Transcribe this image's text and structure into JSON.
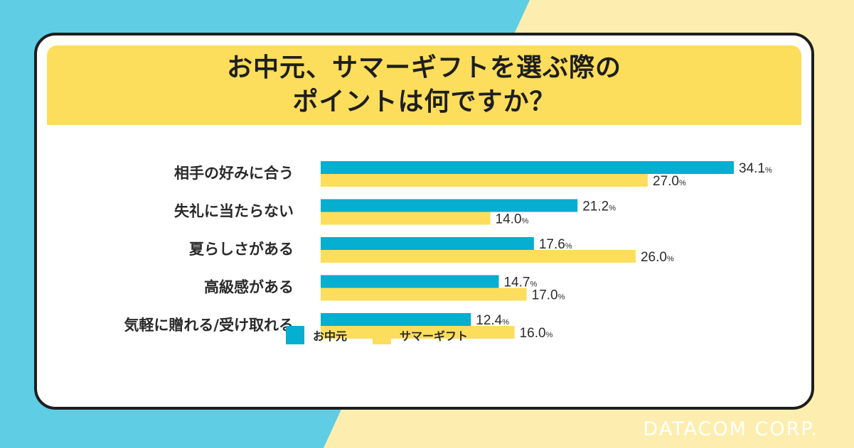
{
  "brand": {
    "text": "DATACOM CORP."
  },
  "colors": {
    "series_0": "#06aed0",
    "series_1": "#fddd5c",
    "background_blue": "#5fcde4",
    "background_yellow": "#fdeeb0"
  },
  "chart_data": {
    "type": "bar",
    "orientation": "horizontal",
    "title_lines": [
      "お中元、サマーギフトを選ぶ際の",
      "ポイントは何ですか？"
    ],
    "categories": [
      "相手の好みに合う",
      "失礼に当たらない",
      "夏らしさがある",
      "高級感がある",
      "気軽に贈れる/受け取れる"
    ],
    "value_labels": [
      [
        "34.1",
        "21.2",
        "17.6",
        "14.7",
        "12.4"
      ],
      [
        "27.0",
        "14.0",
        "26.0",
        "17.0",
        "16.0"
      ]
    ],
    "series": [
      {
        "name": "お中元",
        "values": [
          34.1,
          21.2,
          17.6,
          14.7,
          12.4
        ]
      },
      {
        "name": "サマーギフト",
        "values": [
          27.0,
          14.0,
          26.0,
          17.0,
          16.0
        ]
      }
    ],
    "unit": "%",
    "xlim": [
      0,
      34.1
    ],
    "grid": false,
    "legend": "bottom"
  }
}
